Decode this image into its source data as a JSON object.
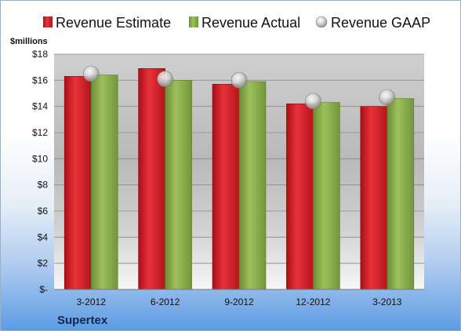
{
  "company": "Supertex",
  "colors": {
    "estimate": "#d8202a",
    "actual": "#8aad4a",
    "gaap": "#c7c7c7"
  },
  "chart_data": {
    "type": "bar",
    "title": "",
    "xlabel": "",
    "ylabel": "",
    "unit_label": "$millions",
    "categories": [
      "3-2012",
      "6-2012",
      "9-2012",
      "12-2012",
      "3-2013"
    ],
    "series": [
      {
        "name": "Revenue Estimate",
        "type": "bar",
        "values": [
          16.3,
          16.9,
          15.7,
          14.2,
          14.0
        ]
      },
      {
        "name": "Revenue Actual",
        "type": "bar",
        "values": [
          16.4,
          16.0,
          15.9,
          14.3,
          14.6
        ]
      },
      {
        "name": "Revenue GAAP",
        "type": "marker",
        "values": [
          16.5,
          16.1,
          16.0,
          14.4,
          14.7
        ]
      }
    ],
    "ylim": [
      0,
      18
    ],
    "y_ticks": [
      "$-",
      "$2",
      "$4",
      "$6",
      "$8",
      "$10",
      "$12",
      "$14",
      "$16",
      "$18"
    ],
    "grid": true,
    "legend_position": "top"
  }
}
